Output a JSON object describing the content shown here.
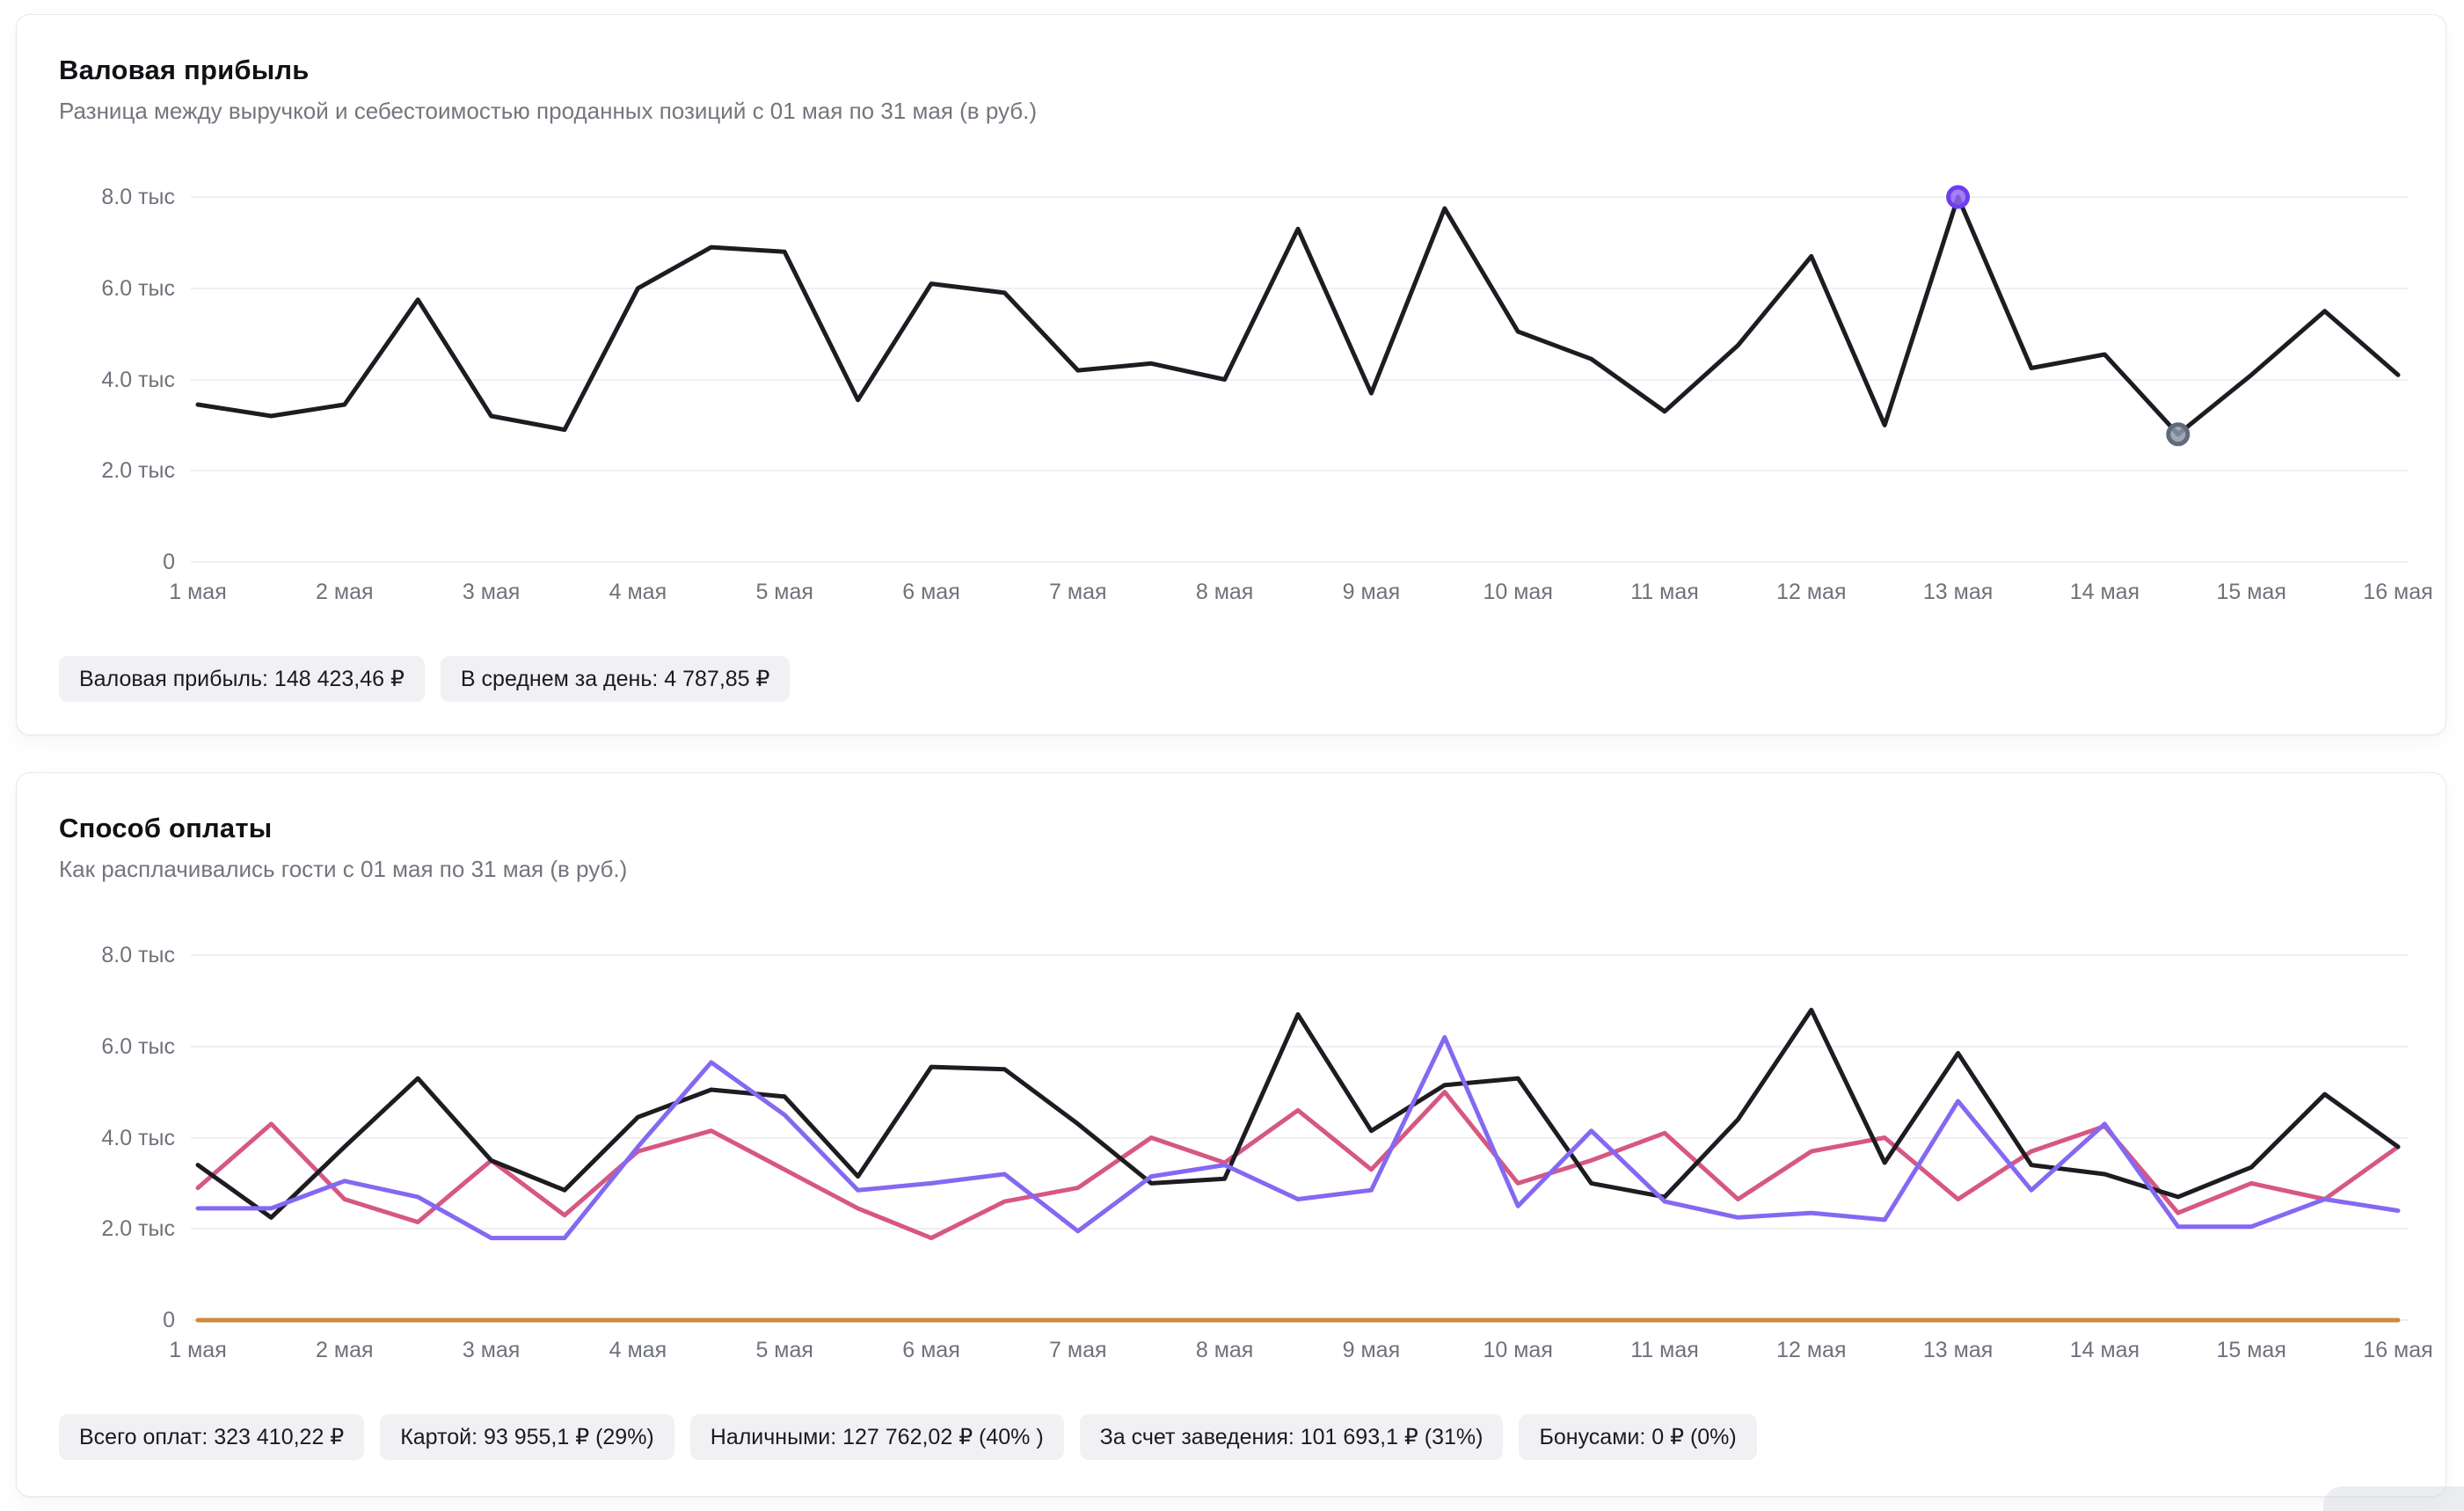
{
  "cards": [
    {
      "title": "Валовая прибыль",
      "subtitle": "Разница между выручкой и себестоимостью проданных позиций с 01 мая по 31 мая (в руб.)",
      "badges": [
        "Валовая прибыль: 148 423,46 ₽",
        "В среднем за день: 4 787,85 ₽"
      ]
    },
    {
      "title": "Способ оплаты",
      "subtitle": "Как расплачивались гости с 01 мая по 31 мая (в руб.)",
      "badges": [
        "Всего оплат: 323 410,22 ₽",
        "Картой: 93 955,1 ₽ (29%)",
        "Наличными: 127 762,02 ₽ (40% )",
        "За счет заведения: 101 693,1 ₽ (31%)",
        "Бонусами: 0 ₽ (0%)"
      ]
    }
  ],
  "chart_data": [
    {
      "type": "line",
      "title": "Валовая прибыль",
      "period": "с 01 мая по 31 мая",
      "units": "руб.",
      "ylim": [
        0,
        8000
      ],
      "grid": "horizontal",
      "legend_position": "none",
      "y_tick_labels": [
        "8.0 тыс",
        "6.0 тыс",
        "4.0 тыс",
        "2.0 тыс",
        "0"
      ],
      "x_tick_labels": [
        "1 мая",
        "2 мая",
        "3 мая",
        "4 мая",
        "5 мая",
        "6 мая",
        "7 мая",
        "8 мая",
        "9 мая",
        "10 мая",
        "11 мая",
        "12 мая",
        "13 мая",
        "14 мая",
        "15 мая",
        "16 мая"
      ],
      "series": [
        {
          "name": "Валовая прибыль",
          "color": "#1c1c22",
          "values": [
            3450,
            3200,
            3450,
            5750,
            3200,
            2900,
            6000,
            6900,
            6800,
            3550,
            6100,
            5900,
            4200,
            4350,
            4000,
            7300,
            3700,
            7750,
            5050,
            4450,
            3300,
            4750,
            6700,
            3000,
            8000,
            4250,
            4550,
            2800,
            4100,
            5500,
            4100
          ]
        }
      ],
      "markers": [
        {
          "series": 0,
          "index": 24,
          "value": 8000,
          "name": "max-point-marker",
          "fill": "#9268f5",
          "stroke": "#6d3df0"
        },
        {
          "series": 0,
          "index": 27,
          "value": 2800,
          "name": "min-point-marker",
          "fill": "#8e98a8",
          "stroke": "#5f6b7b"
        }
      ]
    },
    {
      "type": "line",
      "title": "Способ оплаты",
      "period": "с 01 мая по 31 мая",
      "units": "руб.",
      "ylim": [
        0,
        8000
      ],
      "grid": "horizontal",
      "legend_position": "none",
      "y_tick_labels": [
        "8.0 тыс",
        "6.0 тыс",
        "4.0 тыс",
        "2.0 тыс",
        "0"
      ],
      "x_tick_labels": [
        "1 мая",
        "2 мая",
        "3 мая",
        "4 мая",
        "5 мая",
        "6 мая",
        "7 мая",
        "8 мая",
        "9 мая",
        "10 мая",
        "11 мая",
        "12 мая",
        "13 мая",
        "14 мая",
        "15 мая",
        "16 мая"
      ],
      "series": [
        {
          "name": "Бонусами",
          "color": "#cd8a3e",
          "values": [
            0,
            0,
            0,
            0,
            0,
            0,
            0,
            0,
            0,
            0,
            0,
            0,
            0,
            0,
            0,
            0,
            0,
            0,
            0,
            0,
            0,
            0,
            0,
            0,
            0,
            0,
            0,
            0,
            0,
            0,
            0
          ]
        },
        {
          "name": "За счет заведения",
          "color": "#d65882",
          "values": [
            2900,
            4300,
            2650,
            2150,
            3500,
            2300,
            3700,
            4150,
            3300,
            2450,
            1800,
            2600,
            2900,
            4000,
            3450,
            4600,
            3300,
            5000,
            3000,
            3500,
            4100,
            2650,
            3700,
            4000,
            2650,
            3700,
            4250,
            2350,
            3000,
            2650,
            3800
          ]
        },
        {
          "name": "Наличными",
          "color": "#1c1c22",
          "values": [
            3400,
            2250,
            3800,
            5300,
            3500,
            2850,
            4450,
            5050,
            4900,
            3150,
            5550,
            5500,
            4300,
            3000,
            3100,
            6700,
            4150,
            5150,
            5300,
            3000,
            2700,
            4400,
            6800,
            3450,
            5850,
            3400,
            3200,
            2700,
            3350,
            4950,
            3800
          ]
        },
        {
          "name": "Картой",
          "color": "#8568f2",
          "values": [
            2450,
            2450,
            3050,
            2700,
            1800,
            1800,
            3800,
            5650,
            4500,
            2850,
            3000,
            3200,
            1950,
            3150,
            3400,
            2650,
            2850,
            6200,
            2500,
            4150,
            2600,
            2250,
            2350,
            2200,
            4800,
            2850,
            4300,
            2050,
            2050,
            2650,
            2400
          ]
        }
      ],
      "markers": []
    }
  ]
}
